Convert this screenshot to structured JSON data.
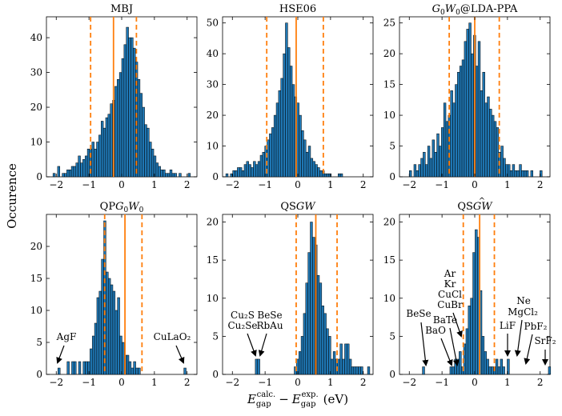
{
  "figure": {
    "ylabel": "Occurence",
    "xlabel_main": "E",
    "xlabel_sub1": "gap",
    "xlabel_sup1": "calc.",
    "xlabel_minus": "−",
    "xlabel_sub2": "gap",
    "xlabel_sup2": "exp.",
    "xlabel_unit": "(eV)"
  },
  "colors": {
    "bar": "#1f77b4",
    "bar_edge": "#000000",
    "mean_line": "#ff7f0e",
    "std_line": "#ff7f0e"
  },
  "chart_data": [
    {
      "type": "bar",
      "title": "MBJ",
      "bin_start": -2.1,
      "bin_width": 0.07,
      "xlim": [
        -2.3,
        2.3
      ],
      "ylim": [
        0,
        46
      ],
      "xticks": [
        -2,
        -1,
        0,
        1,
        2
      ],
      "yticks": [
        0,
        10,
        20,
        30,
        40
      ],
      "values": [
        1,
        0,
        3,
        0,
        1,
        1,
        2,
        2,
        3,
        3,
        4,
        6,
        4,
        5,
        6,
        8,
        8,
        10,
        8,
        10,
        12,
        16,
        14,
        17,
        18,
        21,
        22,
        26,
        28,
        30,
        34,
        38,
        43,
        40,
        40,
        37,
        33,
        28,
        24,
        20,
        15,
        14,
        10,
        8,
        6,
        4,
        3,
        2,
        2,
        1,
        1,
        2,
        1,
        1,
        0,
        1,
        0,
        0,
        0,
        1
      ],
      "mean": -0.25,
      "std_lines": [
        -0.95,
        0.45
      ],
      "annotations": []
    },
    {
      "type": "bar",
      "title": "HSE06",
      "bin_start": -2.2,
      "bin_width": 0.07,
      "xlim": [
        -2.3,
        2.3
      ],
      "ylim": [
        0,
        52
      ],
      "xticks": [
        -2,
        -1,
        0,
        1,
        2
      ],
      "yticks": [
        0,
        10,
        20,
        30,
        40,
        50
      ],
      "values": [
        1,
        0,
        1,
        2,
        2,
        3,
        3,
        2,
        4,
        5,
        4,
        3,
        5,
        4,
        5,
        7,
        8,
        10,
        12,
        14,
        16,
        20,
        24,
        28,
        32,
        40,
        50,
        42,
        36,
        30,
        26,
        24,
        20,
        15,
        12,
        8,
        10,
        6,
        5,
        4,
        3,
        2,
        2,
        1,
        1,
        1,
        0,
        0,
        0,
        1,
        1,
        0
      ],
      "mean": -0.05,
      "std_lines": [
        -0.95,
        0.78
      ],
      "annotations": []
    },
    {
      "type": "bar",
      "title_pre": "G",
      "title_sub": "0",
      "title_mid": "W",
      "title_sub2": "0",
      "title_post": "@LDA-PPA",
      "bin_start": -2.0,
      "bin_width": 0.07,
      "xlim": [
        -2.3,
        2.3
      ],
      "ylim": [
        0,
        26
      ],
      "xticks": [
        -2,
        -1,
        0,
        1,
        2
      ],
      "yticks": [
        0,
        5,
        10,
        15,
        20,
        25
      ],
      "values": [
        1,
        0,
        2,
        1,
        2,
        3,
        4,
        2,
        5,
        3,
        6,
        4,
        7,
        5,
        8,
        12,
        9,
        10,
        14,
        12,
        15,
        17,
        18,
        19,
        22,
        24,
        25,
        20,
        23,
        18,
        22,
        14,
        17,
        12,
        13,
        11,
        10,
        9,
        8,
        4,
        5,
        3,
        2,
        2,
        1,
        2,
        1,
        1,
        2,
        1,
        1,
        1,
        0,
        1,
        0,
        0,
        0,
        1
      ],
      "mean": 0.0,
      "std_lines": [
        -0.78,
        0.75
      ],
      "annotations": []
    },
    {
      "type": "bar",
      "title_pre": "QP",
      "title_g": "G",
      "title_sub": "0",
      "title_w": "W",
      "title_sub2": "0",
      "bin_start": -1.95,
      "bin_width": 0.07,
      "xlim": [
        -2.3,
        2.3
      ],
      "ylim": [
        0,
        25
      ],
      "xticks": [
        -2,
        -1,
        0,
        1,
        2
      ],
      "yticks": [
        0,
        5,
        10,
        15,
        20
      ],
      "values": [
        1,
        0,
        0,
        0,
        2,
        0,
        2,
        2,
        0,
        2,
        0,
        2,
        2,
        2,
        4,
        6,
        8,
        12,
        13,
        18,
        24,
        16,
        15,
        14,
        13,
        10,
        12,
        6,
        5,
        3,
        3,
        2,
        1,
        2,
        1,
        1,
        0,
        0,
        0,
        0,
        0,
        0,
        0,
        0,
        0,
        0,
        0,
        0,
        0,
        0,
        0,
        0,
        0,
        0,
        0,
        1
      ],
      "mean": 0.1,
      "std_lines": [
        -0.52,
        0.62
      ],
      "annotations": [
        {
          "text": "AgF",
          "x": -1.85
        },
        {
          "text": "CuLaO₂",
          "x": 2.05
        }
      ]
    },
    {
      "type": "bar",
      "title_pre": "QS",
      "title_g": "GW",
      "bin_start": -1.3,
      "bin_width": 0.07,
      "xlim": [
        -2.3,
        2.3
      ],
      "ylim": [
        0,
        21
      ],
      "xticks": [
        -2,
        -1,
        0,
        1,
        2
      ],
      "yticks": [
        0,
        5,
        10,
        15,
        20
      ],
      "values": [
        2,
        2,
        0,
        0,
        0,
        0,
        0,
        0,
        0,
        0,
        0,
        0,
        0,
        0,
        0,
        0,
        0,
        1,
        2,
        3,
        5,
        8,
        12,
        16,
        20,
        18,
        17,
        13,
        12,
        9,
        8,
        6,
        5,
        2,
        3,
        2,
        2,
        4,
        2,
        4,
        4,
        2,
        1,
        1,
        1,
        1,
        1,
        0,
        0,
        1
      ],
      "mean": 0.55,
      "std_lines": [
        -0.05,
        1.2
      ],
      "annotations": [
        {
          "text": "Cu₂S",
          "x": -1.25,
          "line": 1
        },
        {
          "text": "Cu₂Se",
          "x": -1.25,
          "line": 2
        },
        {
          "text": "BeSe",
          "x": -0.9,
          "line": 1
        },
        {
          "text": "RbAu",
          "x": -0.9,
          "line": 2
        }
      ]
    },
    {
      "type": "bar",
      "title_pre": "QS",
      "title_g": "GW",
      "title_hat": "^",
      "bin_start": -1.6,
      "bin_width": 0.07,
      "xlim": [
        -2.3,
        2.3
      ],
      "ylim": [
        0,
        21
      ],
      "xticks": [
        -2,
        -1,
        0,
        1,
        2
      ],
      "yticks": [
        0,
        5,
        10,
        15,
        20
      ],
      "values": [
        1,
        0,
        0,
        0,
        0,
        0,
        0,
        0,
        0,
        0,
        0,
        0,
        1,
        1,
        2,
        2,
        3,
        1,
        4,
        6,
        9,
        10,
        16,
        19,
        18,
        11,
        5,
        3,
        2,
        1,
        1,
        1,
        2,
        1,
        2,
        1,
        0,
        2,
        0,
        0,
        0,
        0,
        0,
        0,
        0,
        0,
        0,
        0,
        0,
        0,
        0,
        0,
        0,
        0,
        0,
        1
      ],
      "mean": 0.15,
      "std_lines": [
        -0.35,
        0.6
      ],
      "annotations": [
        {
          "text": "BeSe"
        },
        {
          "text": "BaO"
        },
        {
          "text": "BaTe"
        },
        {
          "text": "Ar"
        },
        {
          "text": "Kr"
        },
        {
          "text": "CuCl"
        },
        {
          "text": "CuBr"
        },
        {
          "text": "LiF"
        },
        {
          "text": "Ne"
        },
        {
          "text": "MgCl₂"
        },
        {
          "text": "PbF₂"
        },
        {
          "text": "SrF₂"
        }
      ]
    }
  ]
}
